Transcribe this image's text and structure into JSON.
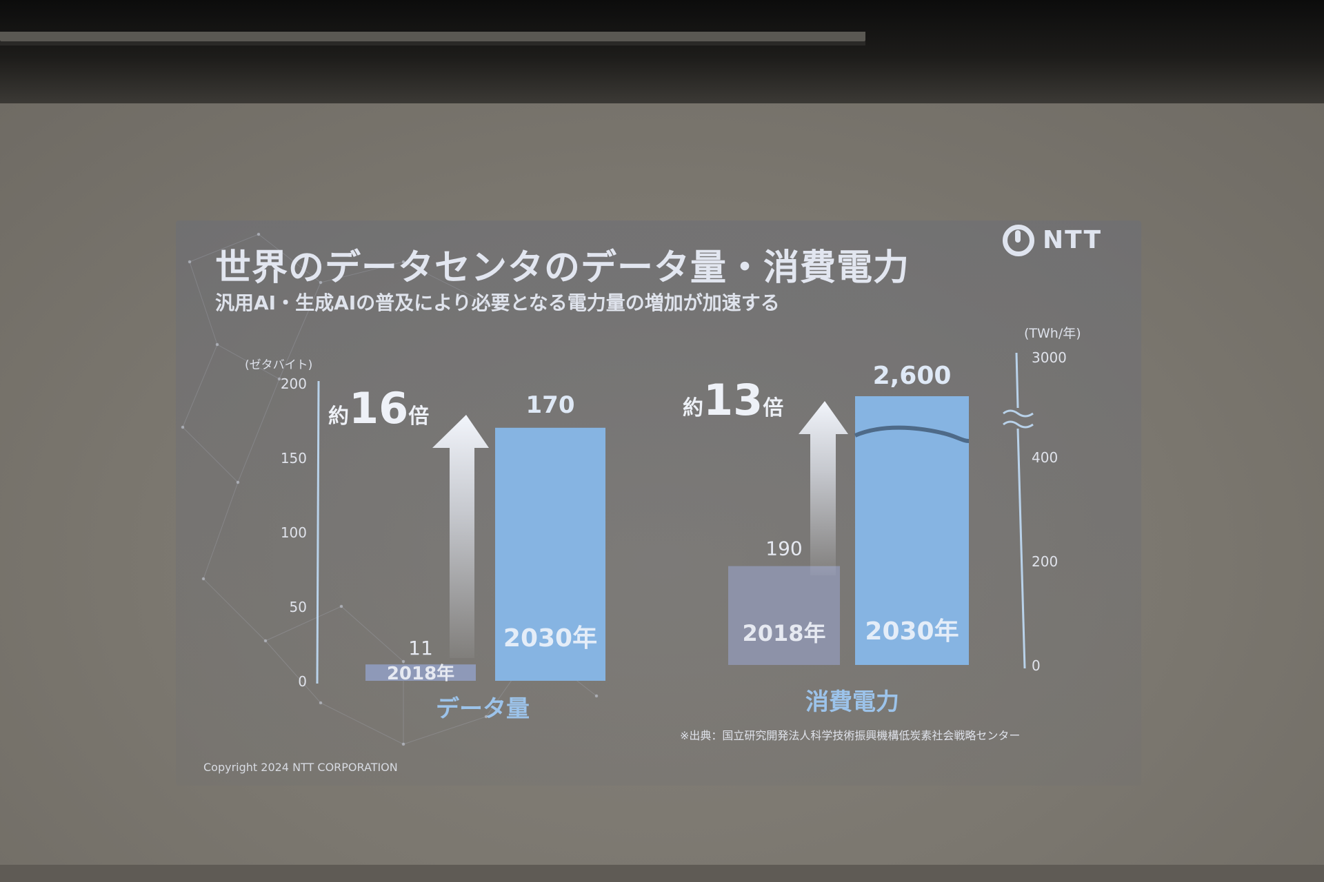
{
  "slide": {
    "title": "世界のデータセンタのデータ量・消費電力",
    "subtitle": "汎用AI・生成AIの普及により必要となる電力量の増加が加速する",
    "logo_text": "NTT",
    "copyright": "Copyright 2024 NTT CORPORATION",
    "source": "※出典：国立研究開発法人科学技術振興機構低炭素社会戦略センター"
  },
  "colors": {
    "bar_2030": "#86b4e2",
    "bar_2018_left": "#8e99b8",
    "bar_2018_right": "#8d92a8",
    "text_light": "#e2e6f0",
    "axis": "#a9c8e6"
  },
  "chart_data": [
    {
      "type": "bar",
      "title": "データ量",
      "ylabel": "(ゼタバイト)",
      "ylim": [
        0,
        200
      ],
      "yticks": [
        0,
        50,
        100,
        150,
        200
      ],
      "categories": [
        "2018年",
        "2030年"
      ],
      "values": [
        11,
        170
      ],
      "value_labels": [
        "11",
        "170"
      ],
      "multiplier_prefix": "約",
      "multiplier_value": "16",
      "multiplier_suffix": "倍"
    },
    {
      "type": "bar",
      "title": "消費電力",
      "ylabel": "(TWh/年)",
      "ylim": [
        0,
        3000
      ],
      "axis_break": true,
      "yticks": [
        0,
        200,
        400,
        3000
      ],
      "categories": [
        "2018年",
        "2030年"
      ],
      "values": [
        190,
        2600
      ],
      "value_labels": [
        "190",
        "2,600"
      ],
      "multiplier_prefix": "約",
      "multiplier_value": "13",
      "multiplier_suffix": "倍"
    }
  ]
}
